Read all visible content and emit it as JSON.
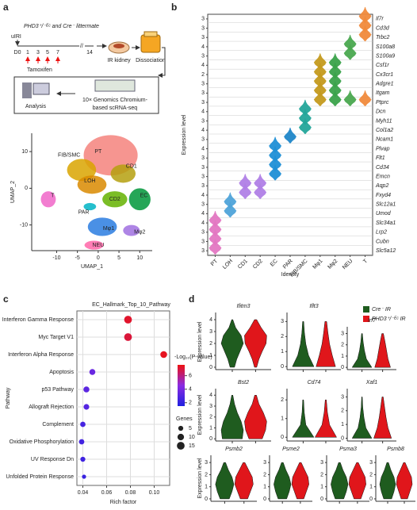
{
  "panel_labels": [
    "a",
    "b",
    "c",
    "d"
  ],
  "panel_a": {
    "genotype": "PHD3⁺/⁻ᴱᶜ and Cre⁻ littermate",
    "injury": "uIRI",
    "days": [
      "D0",
      "1",
      "3",
      "5",
      "7",
      "14"
    ],
    "treatment": "Tamoxifen",
    "sample": "IR kidney",
    "step_dissociation": "Dissociation",
    "step_sequencing": [
      "10× Genomics Chromium-",
      "based scRNA-seq"
    ],
    "step_analysis": "Analysis",
    "umap": {
      "xlabel": "UMAP_1",
      "ylabel": "UMAP_2",
      "xlim": [
        -16,
        13
      ],
      "ylim": [
        -17,
        15
      ],
      "xticks": [
        -10,
        -5,
        0,
        5,
        10
      ],
      "yticks": [
        -10,
        0,
        10
      ],
      "clusters": [
        "PT",
        "FIB/SMC",
        "CD1",
        "LOH",
        "CD2",
        "EC",
        "PAR",
        "T",
        "Mφ1",
        "Mφ2",
        "NEU"
      ],
      "colors": [
        "#f4837d",
        "#d9a400",
        "#b5a00f",
        "#d98a00",
        "#64b200",
        "#00973a",
        "#00b4c4",
        "#f066c8",
        "#2a7de0",
        "#a070e0",
        "#ff66a8"
      ]
    }
  },
  "panel_b": {
    "ylabel": "Expression level",
    "xlabel": "Identity",
    "genes": [
      "Il7r",
      "Cd3d",
      "Trbc2",
      "S100a8",
      "S100a9",
      "Csf1r",
      "Cx3cr1",
      "Adgre1",
      "Itgam",
      "Ptprc",
      "Dcn",
      "Myh11",
      "Col1a2",
      "Ncam1",
      "Plvap",
      "Flt1",
      "Cd34",
      "Emcn",
      "Aqp2",
      "Fxyd4",
      "Slc12a1",
      "Umod",
      "Slc34a1",
      "Lrp2",
      "Cubn",
      "Slc5a12"
    ],
    "row_max": [
      3,
      3,
      3,
      4,
      3,
      4,
      2,
      3,
      3,
      3,
      4,
      3,
      4,
      3,
      4,
      3,
      3,
      3,
      3,
      4,
      3,
      4,
      4,
      3,
      3,
      3
    ],
    "clusters": [
      "PT",
      "LOH",
      "CD1",
      "CD2",
      "EC",
      "PAR",
      "FIB/SMC",
      "Mφ1",
      "Mφ2",
      "NEU",
      "T"
    ],
    "colors": [
      "#e377c2",
      "#4fa3d9",
      "#b07fe6",
      "#b07fe6",
      "#1f8fd6",
      "#1f86c8",
      "#23a59a",
      "#c49a1e",
      "#3aa24a",
      "#4aa84f",
      "#f08a3c"
    ]
  },
  "panel_c": {
    "type": "scatter",
    "title": "EC_Hallmark_Top_10_Pathway",
    "xlabel": "Rich factor",
    "ylabel": "Pathway",
    "categories": [
      "Interferon Gamma Response",
      "Myc Target V1",
      "Interferon Alpha Response",
      "Apoptosis",
      "p53 Pathway",
      "Allograft Rejection",
      "Complement",
      "Oxidative Phosphorylation",
      "UV Response Dn",
      "Unfolded Protein Response"
    ],
    "x": [
      0.078,
      0.078,
      0.108,
      0.048,
      0.043,
      0.043,
      0.04,
      0.039,
      0.04,
      0.041
    ],
    "color_values": [
      7.2,
      7.0,
      7.4,
      3.6,
      3.2,
      3.0,
      2.6,
      2.5,
      2.4,
      2.2
    ],
    "sizes": [
      15,
      15,
      11,
      8,
      8,
      7,
      6,
      6,
      5,
      3
    ],
    "xlim": [
      0.035,
      0.113
    ],
    "xticks": [
      0.04,
      0.06,
      0.08,
      {
        "value": 0.1,
        "label": "0.10"
      }
    ],
    "color_title": "-Log₁₀(P-value)",
    "color_lim": [
      1.5,
      7.6
    ],
    "color_ticks": [
      2,
      4,
      6
    ],
    "colors": [
      "#2020e0",
      "#8a2be2",
      "#ee1111"
    ],
    "size_title": "Genes",
    "size_ticks": [
      5,
      10,
      15
    ],
    "grid": true
  },
  "panel_d": {
    "ylabel": "Expression level",
    "legend": [
      {
        "name": "Cre⁻ IR",
        "color": "#1f5c1f"
      },
      {
        "name": "PHD3⁺/⁻ᴱᶜ IR",
        "color": "#e0161b"
      }
    ],
    "plots": [
      {
        "gene": "Ifitm3",
        "ylim": [
          -0.2,
          4.6
        ],
        "yticks": [
          0,
          1,
          2,
          3,
          4
        ]
      },
      {
        "gene": "Iflt3",
        "ylim": [
          -0.2,
          3.6
        ],
        "yticks": [
          0,
          1,
          2,
          3
        ]
      },
      {
        "gene": "Irf7",
        "ylim": [
          -0.2,
          3.6
        ],
        "yticks": [
          0,
          1,
          2,
          3
        ]
      },
      {
        "gene": "Bst2",
        "ylim": [
          -0.2,
          4.6
        ],
        "yticks": [
          0,
          1,
          2,
          3,
          4
        ]
      },
      {
        "gene": "Cd74",
        "ylim": [
          -0.2,
          2.6
        ],
        "yticks": [
          0,
          1,
          2
        ]
      },
      {
        "gene": "Xaf1",
        "ylim": [
          -0.2,
          3.6
        ],
        "yticks": [
          0,
          1,
          2,
          3
        ]
      },
      {
        "gene": "Psmb2",
        "ylim": [
          -0.2,
          3.6
        ],
        "yticks": [
          0,
          1,
          2,
          3
        ]
      },
      {
        "gene": "Psme2",
        "ylim": [
          -0.2,
          3.6
        ],
        "yticks": [
          0,
          1,
          2,
          3
        ]
      },
      {
        "gene": "Psma3",
        "ylim": [
          -0.2,
          3.6
        ],
        "yticks": [
          0,
          1,
          2,
          3
        ]
      },
      {
        "gene": "Psmb8",
        "ylim": [
          -0.2,
          3.6
        ],
        "yticks": [
          0,
          1,
          2,
          3
        ]
      }
    ]
  }
}
